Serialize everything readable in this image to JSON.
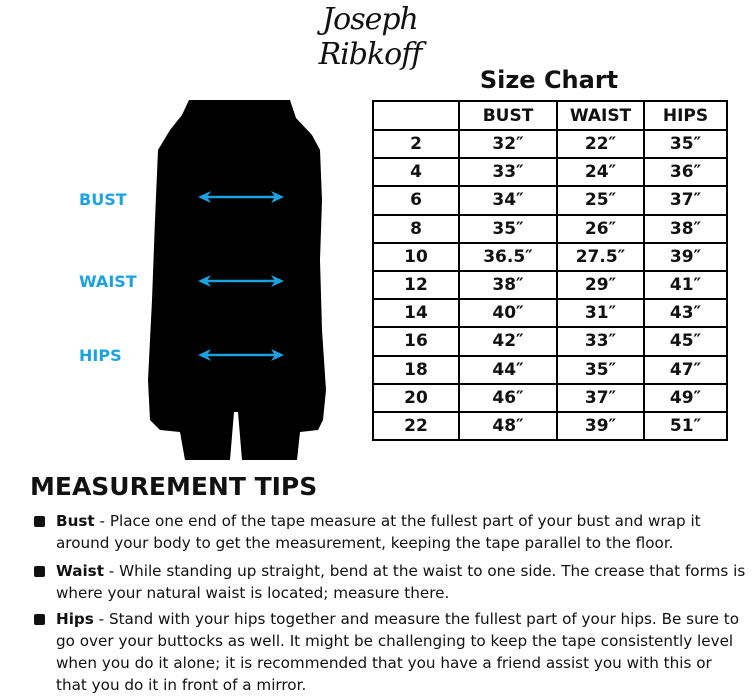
{
  "logo": "Joseph Ribkoff",
  "title": "Size Chart",
  "columns": [
    "",
    "BUST",
    "WAIST",
    "HIPS"
  ],
  "rows": [
    [
      "2",
      "32″",
      "22″",
      "35″"
    ],
    [
      "4",
      "33″",
      "24″",
      "36″"
    ],
    [
      "6",
      "34″",
      "25″",
      "37″"
    ],
    [
      "8",
      "35″",
      "26″",
      "38″"
    ],
    [
      "10",
      "36.5″",
      "27.5″",
      "39″"
    ],
    [
      "12",
      "38″",
      "29″",
      "41″"
    ],
    [
      "14",
      "40″",
      "31″",
      "43″"
    ],
    [
      "16",
      "42″",
      "33″",
      "45″"
    ],
    [
      "18",
      "44″",
      "35″",
      "47″"
    ],
    [
      "20",
      "46″",
      "37″",
      "49″"
    ],
    [
      "22",
      "48″",
      "39″",
      "51″"
    ]
  ],
  "figure_labels": {
    "bust": "BUST",
    "waist": "WAIST",
    "hips": "HIPS"
  },
  "accent_color": "#1aa3e0",
  "tips": {
    "heading": "MEASUREMENT TIPS",
    "items": [
      {
        "term": "Bust",
        "text": " - Place one end of the tape measure at the fullest part of your bust and wrap it around your body to get the measurement, keeping the tape parallel to the floor."
      },
      {
        "term": "Waist",
        "text": " - While standing up straight, bend at the waist to one side. The crease that forms is where your natural waist is located; measure there."
      },
      {
        "term": "Hips",
        "text": " - Stand with your hips together and measure the fullest part of your hips. Be sure to go over your buttocks as well. It might be challenging to keep the tape consistently level when you do it alone; it is recommended that you have a friend assist you with this or that you do it in front of a mirror."
      }
    ]
  }
}
